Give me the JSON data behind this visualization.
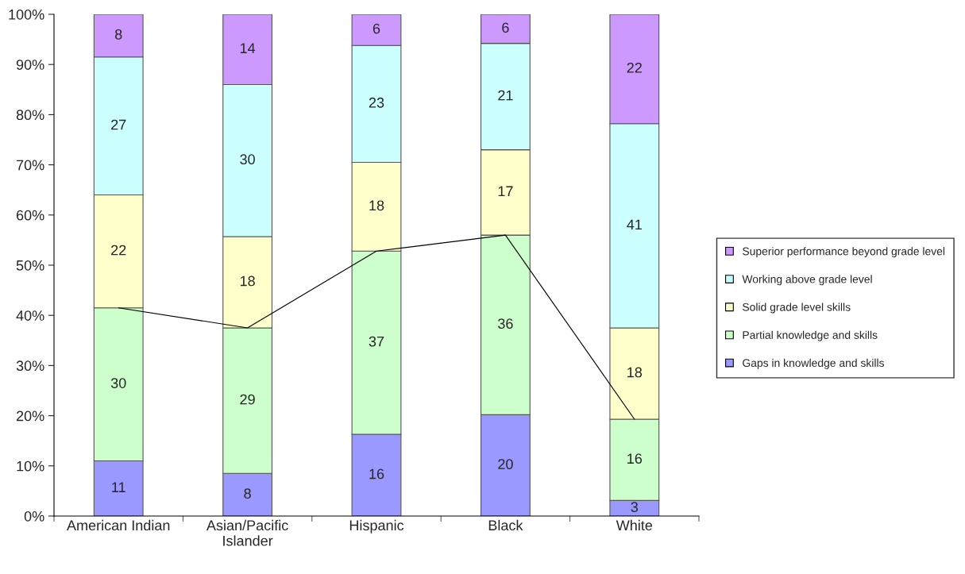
{
  "chart_data": {
    "type": "bar",
    "stacked": true,
    "categories": [
      "American Indian",
      "Asian/Pacific\nIslander",
      "Hispanic",
      "Black",
      "White"
    ],
    "series": [
      {
        "name": "Gaps in knowledge and skills",
        "color": "#9999ff",
        "values": [
          11,
          8.5,
          16.3,
          20.2,
          3.1
        ],
        "value_labels": [
          "11",
          "8",
          "16",
          "20",
          "3"
        ]
      },
      {
        "name": "Partial knowledge and skills",
        "color": "#ccffcc",
        "values": [
          30.5,
          29,
          36.5,
          35.8,
          16.2
        ],
        "value_labels": [
          "30",
          "29",
          "37",
          "36",
          "16"
        ]
      },
      {
        "name": "Solid grade level skills",
        "color": "#ffffcc",
        "values": [
          22.5,
          18.2,
          17.7,
          17,
          18.2
        ],
        "value_labels": [
          "22",
          "18",
          "18",
          "17",
          "18"
        ]
      },
      {
        "name": "Working above grade level",
        "color": "#ccffff",
        "values": [
          27.5,
          30.3,
          23.3,
          21.2,
          40.7
        ],
        "value_labels": [
          "27",
          "30",
          "23",
          "21",
          "41"
        ]
      },
      {
        "name": "Superior performance beyond grade level",
        "color": "#cc99ff",
        "values": [
          8.5,
          14,
          6.2,
          5.8,
          21.8
        ],
        "value_labels": [
          "8",
          "14",
          "6",
          "6",
          "22"
        ]
      },
      {
        "type": "line",
        "color": "#000000",
        "values": [
          41.5,
          37.5,
          52.8,
          56,
          19.3
        ]
      }
    ],
    "ylim": [
      0,
      100
    ],
    "yticks": [
      {
        "value": 0,
        "label": "0%"
      },
      {
        "value": 10,
        "label": "10%"
      },
      {
        "value": 20,
        "label": "20%"
      },
      {
        "value": 30,
        "label": "30%"
      },
      {
        "value": 40,
        "label": "40%"
      },
      {
        "value": 50,
        "label": "50%"
      },
      {
        "value": 60,
        "label": "60%"
      },
      {
        "value": 70,
        "label": "70%"
      },
      {
        "value": 80,
        "label": "80%"
      },
      {
        "value": 90,
        "label": "90%"
      },
      {
        "value": 100,
        "label": "100%"
      }
    ],
    "legend": "right",
    "grid": false
  }
}
